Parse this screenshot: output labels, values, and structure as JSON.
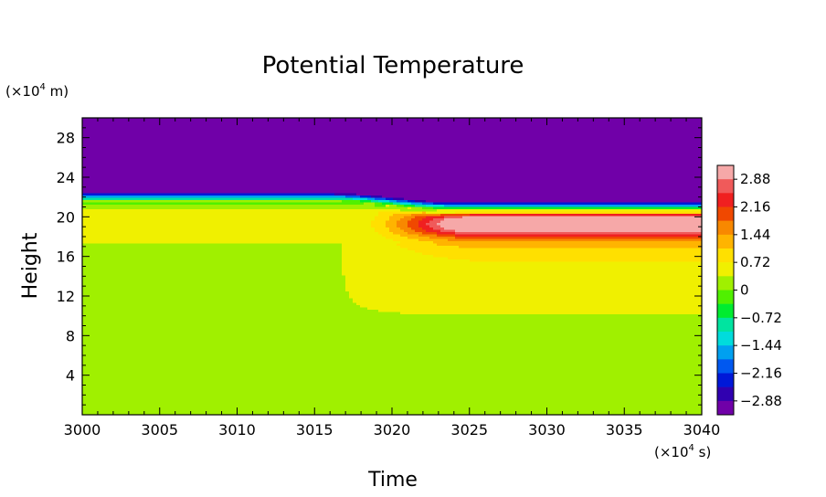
{
  "chart_data": {
    "type": "heatmap",
    "title": "Potential Temperature",
    "xlabel": "Time",
    "ylabel": "Height",
    "x_unit_prefix": "(×10",
    "x_unit_exp": "4",
    "x_unit_suffix": " s)",
    "y_unit_prefix": "(×10",
    "y_unit_exp": "4",
    "y_unit_suffix": " m)",
    "xlim": [
      3000,
      3040
    ],
    "ylim": [
      0,
      30
    ],
    "x_ticks": [
      3000,
      3005,
      3010,
      3015,
      3020,
      3025,
      3030,
      3035,
      3040
    ],
    "x_tick_labels": [
      "3000",
      "3005",
      "3010",
      "3015",
      "3020",
      "3025",
      "3030",
      "3035",
      "3040"
    ],
    "y_ticks": [
      4,
      8,
      12,
      16,
      20,
      24,
      28
    ],
    "y_tick_labels": [
      "4",
      "8",
      "12",
      "16",
      "20",
      "24",
      "28"
    ],
    "colorbar": {
      "min": -3.24,
      "max": 3.24,
      "levels": 18,
      "tick_values": [
        2.88,
        2.16,
        1.44,
        0.72,
        0,
        -0.72,
        -1.44,
        -2.16,
        -2.88
      ],
      "tick_labels": [
        "2.88",
        "2.16",
        "1.44",
        "0.72",
        "0",
        "−0.72",
        "−1.44",
        "−2.16",
        "−2.88"
      ],
      "colors_high_to_low": [
        "#f6a8a8",
        "#f05a5a",
        "#f02020",
        "#f04800",
        "#f88800",
        "#ffb400",
        "#ffe000",
        "#f0f000",
        "#a0f000",
        "#50f000",
        "#00ec30",
        "#00e4a0",
        "#00dcdc",
        "#00a0f0",
        "#0058f0",
        "#0018d8",
        "#3000b0",
        "#7000a8"
      ]
    },
    "field_description": {
      "stratosphere_value": -3.0,
      "tropopause_height_before": 21.5,
      "tropopause_height_after": 20.6,
      "transition_time": 3020,
      "warm_layer_peak_value": 2.6,
      "warm_layer_height": 19.5
    }
  }
}
